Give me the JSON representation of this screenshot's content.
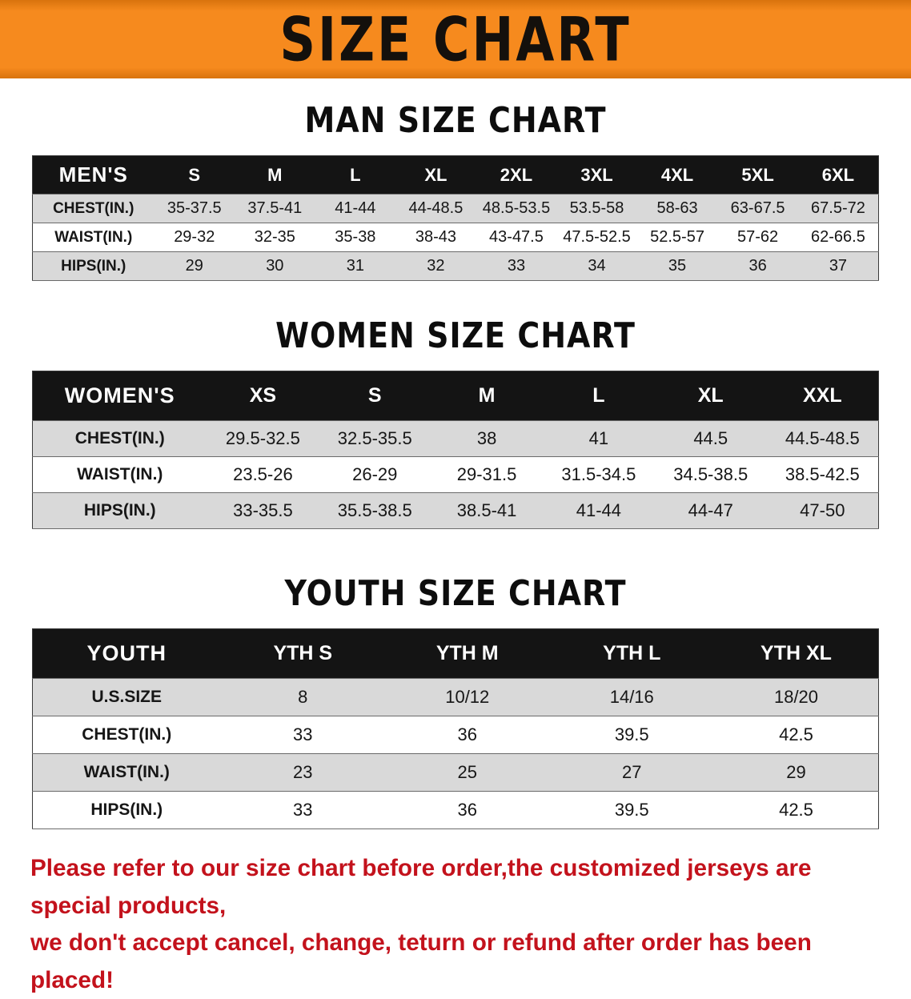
{
  "banner": {
    "title": "SIZE CHART",
    "background_color": "#f68a1e",
    "text_color": "#14100c"
  },
  "sections": [
    {
      "id": "men",
      "heading": "MAN SIZE CHART",
      "table": {
        "header": [
          "MEN'S",
          "S",
          "M",
          "L",
          "XL",
          "2XL",
          "3XL",
          "4XL",
          "5XL",
          "6XL"
        ],
        "rows": [
          [
            "CHEST(IN.)",
            "35-37.5",
            "37.5-41",
            "41-44",
            "44-48.5",
            "48.5-53.5",
            "53.5-58",
            "58-63",
            "63-67.5",
            "67.5-72"
          ],
          [
            "WAIST(IN.)",
            "29-32",
            "32-35",
            "35-38",
            "38-43",
            "43-47.5",
            "47.5-52.5",
            "52.5-57",
            "57-62",
            "62-66.5"
          ],
          [
            "HIPS(IN.)",
            "29",
            "30",
            "31",
            "32",
            "33",
            "34",
            "35",
            "36",
            "37"
          ]
        ]
      }
    },
    {
      "id": "women",
      "heading": "WOMEN SIZE CHART",
      "table": {
        "header": [
          "WOMEN'S",
          "XS",
          "S",
          "M",
          "L",
          "XL",
          "XXL"
        ],
        "rows": [
          [
            "CHEST(IN.)",
            "29.5-32.5",
            "32.5-35.5",
            "38",
            "41",
            "44.5",
            "44.5-48.5"
          ],
          [
            "WAIST(IN.)",
            "23.5-26",
            "26-29",
            "29-31.5",
            "31.5-34.5",
            "34.5-38.5",
            "38.5-42.5"
          ],
          [
            "HIPS(IN.)",
            "33-35.5",
            "35.5-38.5",
            "38.5-41",
            "41-44",
            "44-47",
            "47-50"
          ]
        ]
      }
    },
    {
      "id": "youth",
      "heading": "YOUTH SIZE CHART",
      "table": {
        "header": [
          "YOUTH",
          "YTH S",
          "YTH M",
          "YTH L",
          "YTH XL"
        ],
        "rows": [
          [
            "U.S.SIZE",
            "8",
            "10/12",
            "14/16",
            "18/20"
          ],
          [
            "CHEST(IN.)",
            "33",
            "36",
            "39.5",
            "42.5"
          ],
          [
            "WAIST(IN.)",
            "23",
            "25",
            "27",
            "29"
          ],
          [
            "HIPS(IN.)",
            "33",
            "36",
            "39.5",
            "42.5"
          ]
        ]
      }
    }
  ],
  "footer": {
    "line1": "Please refer to our size chart before order,the customized jerseys are special products,",
    "line2": "we don't accept cancel, change, teturn or refund after order has been placed!",
    "text_color": "#c3121c"
  }
}
